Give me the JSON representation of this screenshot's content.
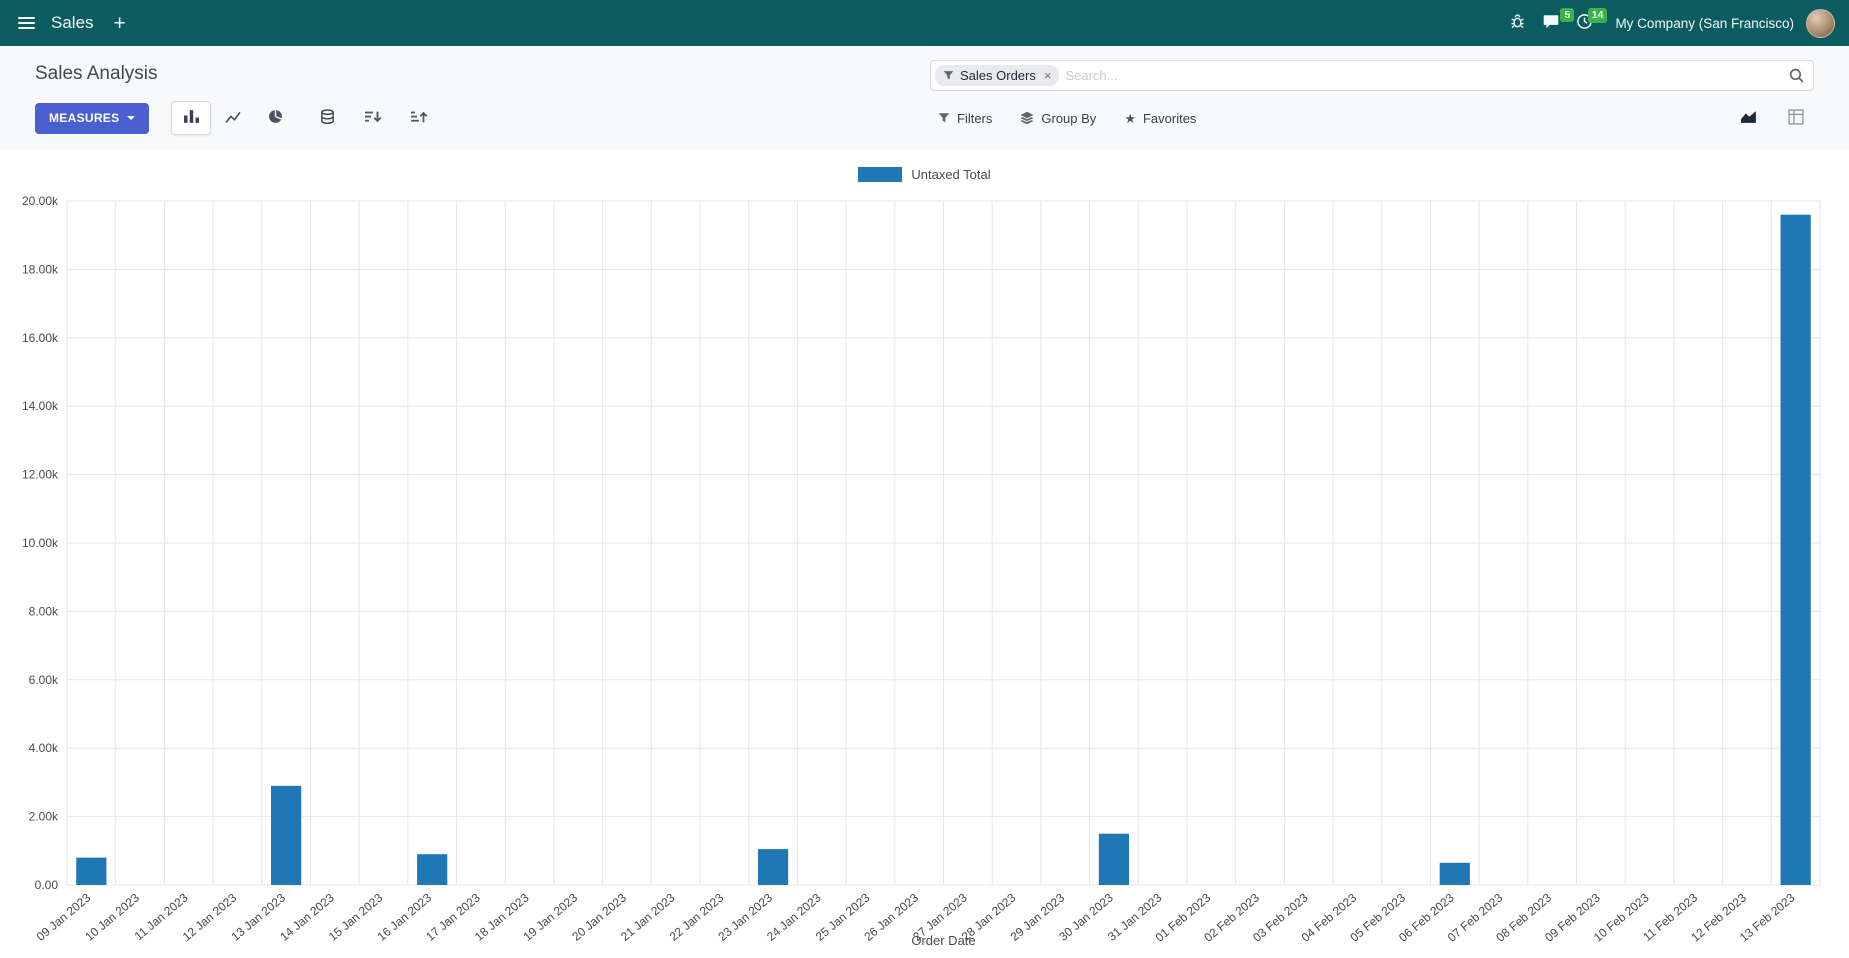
{
  "navbar": {
    "app_name": "Sales",
    "plus_label": "+",
    "company": "My Company (San Francisco)",
    "badges": {
      "chat": "5",
      "clock": "14"
    }
  },
  "control_panel": {
    "title": "Sales Analysis",
    "search": {
      "facet_label": "Sales Orders",
      "facet_remove": "×",
      "placeholder": "Search..."
    },
    "measures_label": "MEASURES",
    "filters_label": "Filters",
    "group_by_label": "Group By",
    "favorites_label": "Favorites"
  },
  "icons": {
    "hamburger": "css-bars",
    "plus": "+",
    "bug": "svg-bug",
    "chat": "svg-chat-bubble",
    "clock": "svg-clock",
    "search": "svg-magnifier",
    "filter_funnel": "svg-funnel",
    "group_by_layers": "svg-layers",
    "favorites_star": "★",
    "bar_chart": "svg-bars",
    "line_chart": "svg-line",
    "pie_chart": "svg-pie",
    "stacked": "svg-database",
    "sort_desc": "svg-sort-desc",
    "sort_asc": "svg-sort-asc",
    "view_graph": "svg-area-chart",
    "view_pivot": "svg-grid"
  },
  "colors": {
    "navbar_bg": "#0b5c61",
    "accent": "#4a5fd0",
    "badge_green": "#38b44a",
    "bar_blue": "#1f77b4",
    "panel_bg": "#f8f9fa",
    "text_dark": "#374151"
  },
  "chart_data": {
    "type": "bar",
    "legend_label": "Untaxed Total",
    "xlabel": "Order Date",
    "ylabel": "",
    "ylim": [
      0,
      20000
    ],
    "ytick_step": 2000,
    "grid": true,
    "grid_color": "#e6e6e6",
    "color": "#1f77b4",
    "legend_position": "top-center",
    "categories": [
      "09 Jan 2023",
      "10 Jan 2023",
      "11 Jan 2023",
      "12 Jan 2023",
      "13 Jan 2023",
      "14 Jan 2023",
      "15 Jan 2023",
      "16 Jan 2023",
      "17 Jan 2023",
      "18 Jan 2023",
      "19 Jan 2023",
      "20 Jan 2023",
      "21 Jan 2023",
      "22 Jan 2023",
      "23 Jan 2023",
      "24 Jan 2023",
      "25 Jan 2023",
      "26 Jan 2023",
      "27 Jan 2023",
      "28 Jan 2023",
      "29 Jan 2023",
      "30 Jan 2023",
      "31 Jan 2023",
      "01 Feb 2023",
      "02 Feb 2023",
      "03 Feb 2023",
      "04 Feb 2023",
      "05 Feb 2023",
      "06 Feb 2023",
      "07 Feb 2023",
      "08 Feb 2023",
      "09 Feb 2023",
      "10 Feb 2023",
      "11 Feb 2023",
      "12 Feb 2023",
      "13 Feb 2023"
    ],
    "values": [
      800,
      0,
      0,
      0,
      2900,
      0,
      0,
      900,
      0,
      0,
      0,
      0,
      0,
      0,
      1050,
      0,
      0,
      0,
      0,
      0,
      0,
      1500,
      0,
      0,
      0,
      0,
      0,
      0,
      650,
      0,
      0,
      0,
      0,
      0,
      0,
      19600
    ]
  }
}
